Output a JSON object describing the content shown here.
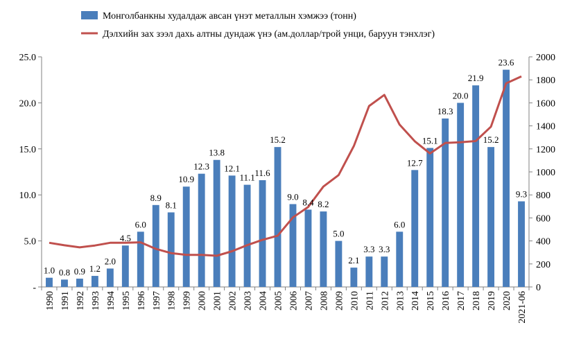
{
  "chart_data": {
    "type": "bar",
    "categories": [
      "1990",
      "1991",
      "1992",
      "1993",
      "1994",
      "1995",
      "1996",
      "1997",
      "1998",
      "1999",
      "2000",
      "2001",
      "2002",
      "2003",
      "2004",
      "2005",
      "2006",
      "2007",
      "2008",
      "2009",
      "2010",
      "2011",
      "2012",
      "2013",
      "2014",
      "2015",
      "2016",
      "2017",
      "2018",
      "2019",
      "2020",
      "2021-06"
    ],
    "series": [
      {
        "name": "Монголбанкны худалдаж авсан үнэт металлын хэмжээ (тонн)",
        "type": "bar",
        "axis": "left",
        "color": "#4a7ebb",
        "values": [
          1.0,
          0.8,
          0.9,
          1.2,
          2.0,
          4.5,
          6.0,
          8.9,
          8.1,
          10.9,
          12.3,
          13.8,
          12.1,
          11.1,
          11.6,
          15.2,
          9.0,
          8.4,
          8.2,
          5.0,
          2.1,
          3.3,
          3.3,
          6.0,
          12.7,
          15.1,
          18.3,
          20.0,
          21.9,
          15.2,
          23.6,
          9.3
        ],
        "labels": [
          "1.0",
          "0.8",
          "0.9",
          "1.2",
          "2.0",
          "4.5",
          "6.0",
          "8.9",
          "8.1",
          "10.9",
          "12.3",
          "13.8",
          "12.1",
          "11.1",
          "11.6",
          "15.2",
          "9.0",
          "8.4",
          "8.2",
          "5.0",
          "2.1",
          "3.3",
          "3.3",
          "6.0",
          "12.7",
          "15.1",
          "18.3",
          "20.0",
          "21.9",
          "15.2",
          "23.6",
          "9.3"
        ]
      },
      {
        "name": "Дэлхийн зах зээл дахь алтны дундаж үнэ (ам.доллар/трой унци, баруун тэнхлэг)",
        "type": "line",
        "axis": "right",
        "color": "#c0504d",
        "values": [
          384,
          362,
          344,
          360,
          384,
          384,
          388,
          331,
          294,
          279,
          279,
          271,
          310,
          363,
          409,
          445,
          604,
          695,
          872,
          972,
          1225,
          1572,
          1669,
          1411,
          1266,
          1160,
          1251,
          1257,
          1268,
          1393,
          1770,
          1830
        ]
      }
    ],
    "left_axis": {
      "ylim": [
        0,
        25
      ],
      "ticks": [
        "-",
        "5.0",
        "10.0",
        "15.0",
        "20.0",
        "25.0"
      ]
    },
    "right_axis": {
      "ylim": [
        0,
        2000
      ],
      "ticks": [
        "0",
        "200",
        "400",
        "600",
        "800",
        "1000",
        "1200",
        "1400",
        "1600",
        "1800",
        "2000"
      ]
    },
    "legend_position": "top",
    "grid": false
  }
}
